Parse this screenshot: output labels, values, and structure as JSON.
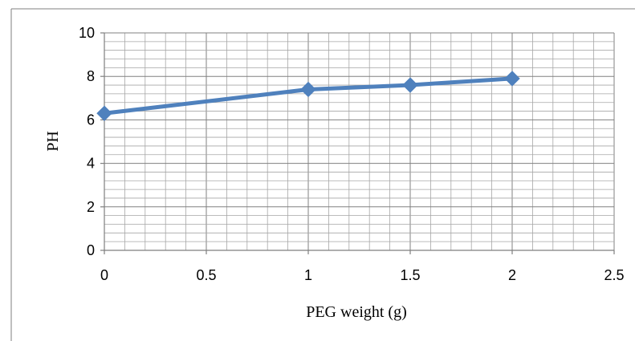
{
  "chart_data": {
    "type": "line",
    "title": "",
    "xlabel": "PEG weight (g)",
    "ylabel": "PH",
    "xlim": [
      0,
      2.5
    ],
    "ylim": [
      0,
      10
    ],
    "x_ticks": [
      0,
      0.5,
      1,
      1.5,
      2,
      2.5
    ],
    "x_tick_labels": [
      "0",
      "0.5",
      "1",
      "1.5",
      "2",
      "2.5"
    ],
    "y_ticks": [
      0,
      2,
      4,
      6,
      8,
      10
    ],
    "y_tick_labels": [
      "0",
      "2",
      "4",
      "6",
      "8",
      "10"
    ],
    "grid": true,
    "legend": "none",
    "series": [
      {
        "color": "#4f81bd",
        "marker": "diamond",
        "points": [
          {
            "x": 0,
            "y": 6.3
          },
          {
            "x": 1,
            "y": 7.4
          },
          {
            "x": 1.5,
            "y": 7.6
          },
          {
            "x": 2,
            "y": 7.9
          }
        ]
      }
    ]
  }
}
